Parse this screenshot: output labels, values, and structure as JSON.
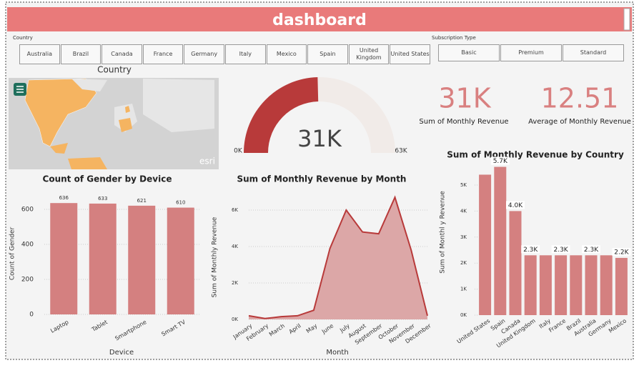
{
  "header": {
    "title": "dashboard"
  },
  "slicers": [
    {
      "label": "Country",
      "options": [
        "Australia",
        "Brazil",
        "Canada",
        "France",
        "Germany",
        "Italy",
        "Mexico",
        "Spain",
        "United Kingdom",
        "United States"
      ]
    },
    {
      "label": "Subscription Type",
      "options": [
        "Basic",
        "Premium",
        "Standard"
      ]
    }
  ],
  "map": {
    "title": "Country",
    "credit": "esri"
  },
  "kpis": [
    {
      "value": "31K",
      "label": "Sum of Monthly Revenue"
    },
    {
      "value": 12.51,
      "label": "Average of Monthly Revenue"
    }
  ],
  "chart_data": [
    {
      "type": "gauge",
      "value": 31000,
      "value_label": "31K",
      "ylim": [
        0,
        63000
      ],
      "yticks": [
        {
          "value": 0,
          "label": "0K"
        },
        {
          "value": 63000,
          "label": "63K"
        }
      ],
      "color": "#b83a3a",
      "track_color": "#f1ebe8"
    },
    {
      "type": "bar",
      "title": "Count of Gender by Device",
      "x_label": "Device",
      "y_label": "Count of Gender",
      "categories": [
        "Laptop",
        "Tablet",
        "Smartphone",
        "Smart TV"
      ],
      "values": [
        636,
        633,
        621,
        610
      ],
      "color": "#d48080",
      "ylim": [
        0,
        700
      ],
      "yticks": [
        0,
        200,
        400,
        600
      ],
      "grid": true,
      "data_labels": true
    },
    {
      "type": "area",
      "title": "Sum of Monthly Revenue by Month",
      "x_label": "Month",
      "y_label": "Sum of Monthly Revenue",
      "categories": [
        "January",
        "February",
        "March",
        "April",
        "May",
        "June",
        "July",
        "August",
        "September",
        "October",
        "November",
        "December"
      ],
      "values": [
        200,
        50,
        150,
        200,
        500,
        3900,
        6000,
        4800,
        4700,
        6700,
        3800,
        200
      ],
      "color": "#b83a3a",
      "fill": "#dca7a7",
      "ylim": [
        0,
        7000
      ],
      "yticks": [
        {
          "value": 0,
          "label": "0K"
        },
        {
          "value": 2000,
          "label": "2K"
        },
        {
          "value": 4000,
          "label": "4K"
        },
        {
          "value": 6000,
          "label": "6K"
        }
      ],
      "grid": true
    },
    {
      "type": "bar",
      "title": "Sum of Monthly Revenue by Country",
      "y_label": "Sum of Monthl y Revenue",
      "categories": [
        "United States",
        "Spain",
        "Canada",
        "United Kingdom",
        "Italy",
        "France",
        "Brazil",
        "Australia",
        "Germany",
        "Mexico"
      ],
      "values": [
        5400,
        5700,
        4000,
        2300,
        2300,
        2300,
        2300,
        2300,
        2300,
        2200
      ],
      "value_labels": [
        null,
        "5.7K",
        "4.0K",
        "2.3K",
        null,
        "2.3K",
        null,
        "2.3K",
        null,
        "2.2K"
      ],
      "color": "#d48080",
      "ylim": [
        0,
        6000
      ],
      "yticks": [
        {
          "value": 0,
          "label": "0K"
        },
        {
          "value": 1000,
          "label": "1K"
        },
        {
          "value": 2000,
          "label": "2K"
        },
        {
          "value": 3000,
          "label": "3K"
        },
        {
          "value": 4000,
          "label": "4K"
        },
        {
          "value": 5000,
          "label": "5K"
        }
      ],
      "grid": false
    }
  ]
}
